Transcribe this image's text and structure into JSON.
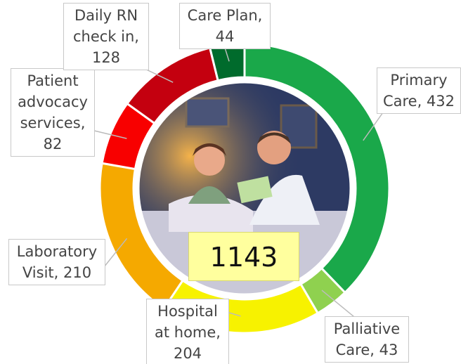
{
  "chart_data": {
    "type": "donut",
    "values": [
      432,
      43,
      204,
      210,
      82,
      128,
      44
    ],
    "value_labels": [
      "Primary Care, 432",
      "Palliative Care, 43",
      "Hospital at home, 204",
      "Laboratory Visit, 210",
      "Patient advocacy services, 82",
      "Daily RN check in, 128",
      "Care Plan, 44"
    ],
    "colors": [
      "#1aa84a",
      "#8fd14f",
      "#f7f200",
      "#f5a900",
      "#f80000",
      "#c4000f",
      "#006b2c"
    ],
    "total": 1143
  }
}
